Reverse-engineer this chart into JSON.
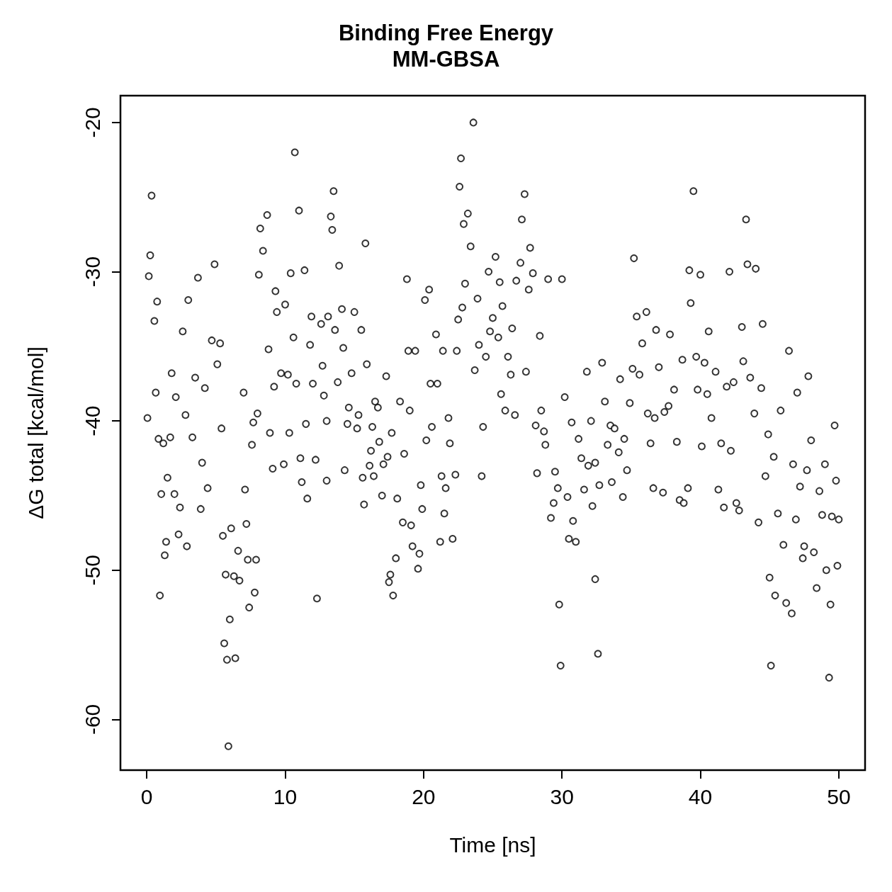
{
  "chart_data": {
    "type": "scatter",
    "title": "Binding Free Energy",
    "subtitle": "MM-GBSA",
    "xlabel": "Time [ns]",
    "ylabel": "ΔG total [kcal/mol]",
    "xlim": [
      -1.9,
      51.9
    ],
    "ylim": [
      -63.4,
      -18.2
    ],
    "xticks": [
      0,
      10,
      20,
      30,
      40,
      50
    ],
    "yticks": [
      -60,
      -50,
      -40,
      -30,
      -20
    ],
    "grid": false,
    "marker": "circle",
    "series": [
      {
        "color": "#000000",
        "x": [
          0.05,
          0.15,
          0.25,
          0.35,
          0.55,
          0.65,
          0.75,
          0.85,
          0.95,
          1.05,
          1.2,
          1.3,
          1.4,
          1.5,
          1.8,
          1.7,
          2.0,
          2.1,
          2.3,
          2.4,
          2.6,
          2.8,
          2.9,
          3.0,
          3.3,
          3.5,
          3.7,
          3.9,
          4.0,
          4.2,
          4.4,
          4.7,
          4.9,
          5.1,
          5.3,
          5.4,
          5.5,
          5.6,
          5.7,
          5.8,
          5.9,
          6.0,
          6.1,
          6.3,
          6.4,
          6.6,
          6.7,
          7.0,
          7.1,
          7.2,
          7.3,
          7.4,
          7.6,
          7.7,
          7.8,
          7.9,
          8.0,
          8.1,
          8.2,
          8.4,
          8.7,
          8.8,
          8.9,
          9.1,
          9.2,
          9.3,
          9.4,
          9.7,
          9.9,
          10.0,
          10.2,
          10.3,
          10.4,
          10.6,
          10.7,
          10.8,
          11.0,
          11.1,
          11.2,
          11.4,
          11.5,
          11.6,
          11.8,
          11.9,
          12.0,
          12.2,
          12.3,
          12.6,
          12.7,
          12.8,
          13.0,
          13.0,
          13.1,
          13.3,
          13.4,
          13.5,
          13.6,
          13.8,
          13.9,
          14.1,
          14.2,
          14.3,
          14.5,
          14.6,
          14.8,
          15.0,
          15.2,
          15.3,
          15.5,
          15.6,
          15.7,
          15.8,
          15.9,
          16.1,
          16.2,
          16.3,
          16.4,
          16.5,
          16.7,
          16.8,
          17.0,
          17.1,
          17.3,
          17.4,
          17.5,
          17.6,
          17.7,
          17.8,
          18.0,
          18.1,
          18.3,
          18.5,
          18.6,
          18.8,
          18.9,
          19.0,
          19.1,
          19.2,
          19.4,
          19.6,
          19.7,
          19.8,
          19.9,
          20.1,
          20.2,
          20.4,
          20.5,
          20.6,
          20.9,
          21.0,
          21.2,
          21.3,
          21.4,
          21.5,
          21.6,
          21.8,
          21.9,
          22.1,
          22.3,
          22.4,
          22.5,
          22.6,
          22.7,
          22.8,
          22.9,
          23.0,
          23.2,
          23.4,
          23.6,
          23.7,
          23.9,
          24.0,
          24.2,
          24.3,
          24.5,
          24.7,
          24.8,
          25.0,
          25.2,
          25.4,
          25.5,
          25.6,
          25.7,
          25.9,
          26.1,
          26.3,
          26.4,
          26.6,
          26.7,
          27.0,
          27.1,
          27.3,
          27.4,
          27.6,
          27.7,
          27.9,
          28.1,
          28.2,
          28.4,
          28.5,
          28.7,
          28.8,
          29.0,
          29.2,
          29.4,
          29.5,
          29.7,
          29.8,
          29.9,
          30.0,
          30.2,
          30.4,
          30.5,
          30.7,
          30.8,
          31.0,
          31.2,
          31.4,
          31.6,
          31.8,
          31.9,
          32.1,
          32.2,
          32.4,
          32.4,
          32.6,
          32.7,
          32.9,
          33.1,
          33.3,
          33.5,
          33.6,
          33.8,
          34.1,
          34.2,
          34.4,
          34.5,
          34.7,
          34.9,
          35.1,
          35.2,
          35.4,
          35.6,
          35.8,
          36.1,
          36.2,
          36.4,
          36.6,
          36.7,
          36.8,
          37.0,
          37.3,
          37.4,
          37.7,
          37.8,
          38.1,
          38.3,
          38.5,
          38.7,
          38.8,
          39.1,
          39.2,
          39.3,
          39.5,
          39.7,
          39.8,
          40.0,
          40.1,
          40.3,
          40.5,
          40.6,
          40.8,
          41.1,
          41.3,
          41.5,
          41.7,
          41.9,
          42.1,
          42.2,
          42.4,
          42.6,
          42.8,
          43.0,
          43.1,
          43.3,
          43.4,
          43.6,
          43.9,
          44.0,
          44.2,
          44.4,
          44.5,
          44.7,
          44.9,
          45.0,
          45.1,
          45.3,
          45.4,
          45.6,
          45.8,
          46.0,
          46.2,
          46.4,
          46.6,
          46.7,
          46.9,
          47.0,
          47.2,
          47.4,
          47.5,
          47.7,
          47.8,
          48.0,
          48.2,
          48.4,
          48.6,
          48.8,
          49.0,
          49.1,
          49.3,
          49.4,
          49.5,
          49.7,
          49.8,
          49.9,
          50.0
        ],
        "values": [
          -39.8,
          -30.3,
          -28.9,
          -24.9,
          -33.3,
          -38.1,
          -32.0,
          -41.2,
          -51.7,
          -44.9,
          -41.5,
          -49.0,
          -48.1,
          -43.8,
          -36.8,
          -41.1,
          -44.9,
          -38.4,
          -47.6,
          -45.8,
          -34.0,
          -39.6,
          -48.4,
          -31.9,
          -41.1,
          -37.1,
          -30.4,
          -45.9,
          -42.8,
          -37.8,
          -44.5,
          -34.6,
          -29.5,
          -36.2,
          -34.8,
          -40.5,
          -47.7,
          -54.9,
          -50.3,
          -56.0,
          -61.8,
          -53.3,
          -47.2,
          -50.4,
          -55.9,
          -48.7,
          -50.7,
          -38.1,
          -44.6,
          -46.9,
          -49.3,
          -52.5,
          -41.6,
          -40.1,
          -51.5,
          -49.3,
          -39.5,
          -30.2,
          -27.1,
          -28.6,
          -26.2,
          -35.2,
          -40.8,
          -43.2,
          -37.7,
          -31.3,
          -32.7,
          -36.8,
          -42.9,
          -32.2,
          -36.9,
          -40.8,
          -30.1,
          -34.4,
          -22.0,
          -37.5,
          -25.9,
          -42.5,
          -44.1,
          -29.9,
          -40.2,
          -45.2,
          -34.9,
          -33.0,
          -37.5,
          -42.6,
          -51.9,
          -33.5,
          -36.3,
          -38.3,
          -40.0,
          -44.0,
          -33.0,
          -26.3,
          -27.2,
          -24.6,
          -33.9,
          -37.4,
          -29.6,
          -32.5,
          -35.1,
          -43.3,
          -40.2,
          -39.1,
          -36.8,
          -32.7,
          -40.5,
          -39.6,
          -33.9,
          -43.8,
          -45.6,
          -28.1,
          -36.2,
          -43.0,
          -42.0,
          -40.4,
          -43.7,
          -38.7,
          -39.1,
          -41.4,
          -45.0,
          -42.9,
          -37.0,
          -42.4,
          -50.8,
          -50.3,
          -40.8,
          -51.7,
          -49.2,
          -45.2,
          -38.7,
          -46.8,
          -42.2,
          -30.5,
          -35.3,
          -39.3,
          -47.0,
          -48.4,
          -35.3,
          -49.9,
          -48.9,
          -44.3,
          -45.9,
          -31.9,
          -41.3,
          -31.2,
          -37.5,
          -40.4,
          -34.2,
          -37.5,
          -48.1,
          -43.7,
          -35.3,
          -46.2,
          -44.5,
          -39.8,
          -41.5,
          -47.9,
          -43.6,
          -35.3,
          -33.2,
          -24.3,
          -22.4,
          -32.4,
          -26.8,
          -30.8,
          -26.1,
          -28.3,
          -20.0,
          -36.6,
          -31.8,
          -34.9,
          -43.7,
          -40.4,
          -35.7,
          -30.0,
          -34.0,
          -33.1,
          -29.0,
          -34.4,
          -30.7,
          -38.2,
          -32.3,
          -39.3,
          -35.7,
          -36.9,
          -33.8,
          -39.6,
          -30.6,
          -29.4,
          -26.5,
          -24.8,
          -36.7,
          -31.2,
          -28.4,
          -30.1,
          -40.3,
          -43.5,
          -34.3,
          -39.3,
          -40.7,
          -41.6,
          -30.5,
          -46.5,
          -45.5,
          -43.4,
          -44.5,
          -52.3,
          -56.4,
          -30.5,
          -38.4,
          -45.1,
          -47.9,
          -40.1,
          -46.7,
          -48.1,
          -41.2,
          -42.5,
          -44.6,
          -36.7,
          -43.0,
          -40.0,
          -45.7,
          -42.8,
          -50.6,
          -55.6,
          -44.3,
          -36.1,
          -38.7,
          -41.6,
          -40.3,
          -44.1,
          -40.5,
          -42.1,
          -37.2,
          -45.1,
          -41.2,
          -43.3,
          -38.8,
          -36.5,
          -29.1,
          -33.0,
          -36.9,
          -34.8,
          -32.7,
          -39.5,
          -41.5,
          -44.5,
          -39.8,
          -33.9,
          -36.4,
          -44.8,
          -39.4,
          -39.0,
          -34.2,
          -37.9,
          -41.4,
          -45.3,
          -35.9,
          -45.5,
          -44.5,
          -29.9,
          -32.1,
          -24.6,
          -35.7,
          -37.9,
          -30.2,
          -41.7,
          -36.1,
          -38.2,
          -34.0,
          -39.8,
          -36.7,
          -44.6,
          -41.5,
          -45.8,
          -37.7,
          -30.0,
          -42.0,
          -37.4,
          -45.5,
          -46.0,
          -33.7,
          -36.0,
          -26.5,
          -29.5,
          -37.1,
          -39.5,
          -29.8,
          -46.8,
          -37.8,
          -33.5,
          -43.7,
          -40.9,
          -50.5,
          -56.4,
          -42.4,
          -51.7,
          -46.2,
          -39.3,
          -48.3,
          -52.2,
          -35.3,
          -52.9,
          -42.9,
          -46.6,
          -38.1,
          -44.4,
          -49.2,
          -48.4,
          -43.3,
          -37.0,
          -41.3,
          -48.8,
          -51.2,
          -44.7,
          -46.3,
          -42.9,
          -50.0,
          -57.2,
          -52.3,
          -46.4,
          -40.3,
          -44.0,
          -49.7,
          -46.6
        ]
      }
    ]
  }
}
